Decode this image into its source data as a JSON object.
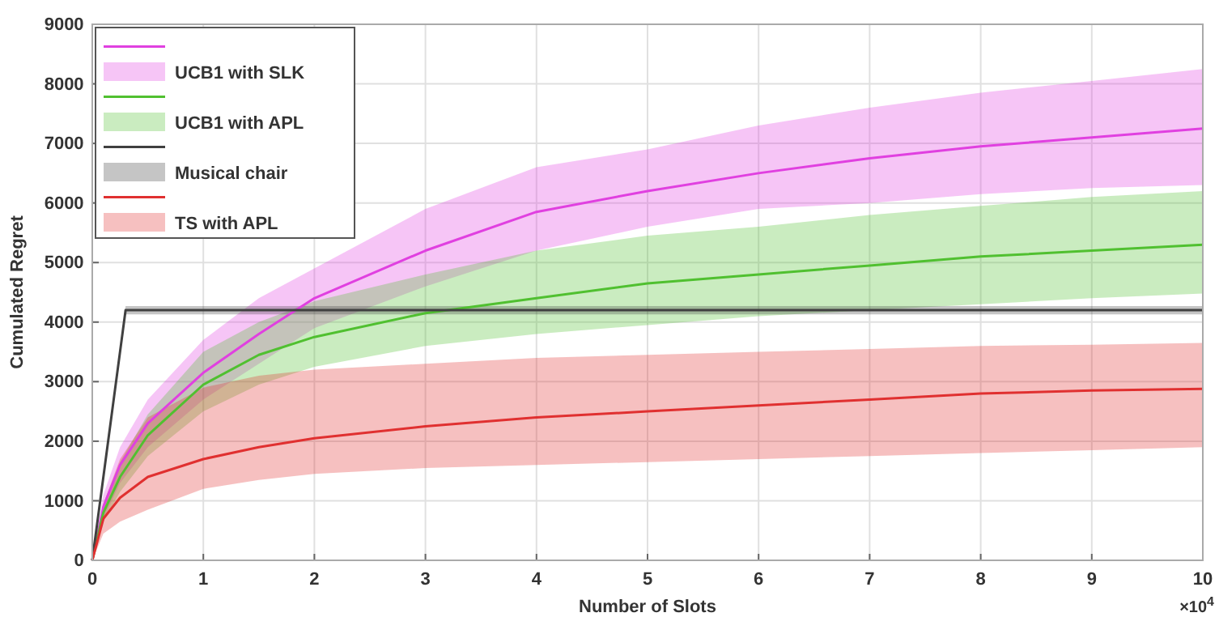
{
  "chart_data": {
    "type": "line",
    "xlabel": "Number of Slots",
    "ylabel": "Cumulated Regret",
    "annotations": [
      "×10$^{4}$"
    ],
    "x": [
      0,
      0.1,
      0.25,
      0.5,
      1,
      1.5,
      2,
      3,
      4,
      5,
      6,
      7,
      8,
      9,
      10
    ],
    "xlim": [
      0,
      10
    ],
    "xticks": [
      0,
      1,
      2,
      3,
      4,
      5,
      6,
      7,
      8,
      9,
      10
    ],
    "ylim": [
      0,
      9000
    ],
    "yticks": [
      0,
      1000,
      2000,
      3000,
      4000,
      5000,
      6000,
      7000,
      8000,
      9000
    ],
    "grid": true,
    "legend": "top left",
    "marker": "none",
    "line_style": "solid",
    "series": [
      {
        "name": "UCB1 with SLK",
        "color": "#e040e0",
        "values": [
          0,
          900,
          1600,
          2300,
          3150,
          3800,
          4400,
          5200,
          5850,
          6200,
          6500,
          6750,
          6950,
          7100,
          7250
        ],
        "lower": [
          0,
          700,
          1300,
          1900,
          2700,
          3300,
          3900,
          4600,
          5200,
          5600,
          5900,
          6000,
          6150,
          6250,
          6300
        ],
        "upper": [
          0,
          1100,
          1900,
          2700,
          3700,
          4400,
          4900,
          5900,
          6600,
          6900,
          7300,
          7600,
          7850,
          8050,
          8250
        ]
      },
      {
        "name": "UCB1 with APL",
        "color": "#50c030",
        "values": [
          0,
          800,
          1400,
          2100,
          2950,
          3450,
          3750,
          4150,
          4400,
          4650,
          4800,
          4950,
          5100,
          5200,
          5300
        ],
        "lower": [
          0,
          650,
          1150,
          1750,
          2500,
          2950,
          3250,
          3600,
          3800,
          3950,
          4100,
          4200,
          4300,
          4400,
          4480
        ],
        "upper": [
          0,
          950,
          1650,
          2450,
          3500,
          4000,
          4350,
          4800,
          5200,
          5450,
          5600,
          5800,
          5950,
          6100,
          6200
        ]
      },
      {
        "name": "Musical chair",
        "color": "#404040",
        "x": [
          0,
          0.3,
          10
        ],
        "values": [
          0,
          4200,
          4200
        ],
        "lower": [
          0,
          4130,
          4130
        ],
        "upper": [
          0,
          4270,
          4270
        ]
      },
      {
        "name": "TS with APL",
        "color": "#e03030",
        "values": [
          0,
          700,
          1050,
          1400,
          1700,
          1900,
          2050,
          2250,
          2400,
          2500,
          2600,
          2700,
          2800,
          2850,
          2880
        ],
        "lower": [
          0,
          450,
          650,
          850,
          1200,
          1350,
          1450,
          1550,
          1600,
          1650,
          1700,
          1750,
          1800,
          1850,
          1900
        ],
        "upper": [
          0,
          950,
          1700,
          2400,
          2900,
          3100,
          3200,
          3300,
          3400,
          3450,
          3500,
          3550,
          3600,
          3620,
          3650
        ]
      }
    ]
  }
}
